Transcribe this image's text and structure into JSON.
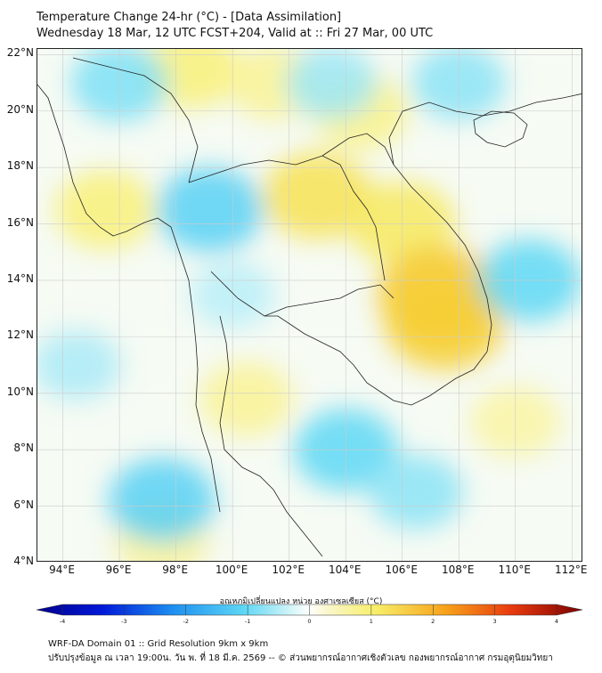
{
  "header": {
    "title_line1": "Temperature Change 24-hr (°C) - [Data Assimilation]",
    "title_line2": "Wednesday 18 Mar, 12 UTC FCST+204, Valid at :: Fri 27 Mar, 00 UTC"
  },
  "map": {
    "lat_labels": [
      "22°N",
      "20°N",
      "18°N",
      "16°N",
      "14°N",
      "12°N",
      "10°N",
      "8°N",
      "6°N",
      "4°N"
    ],
    "lon_labels": [
      "94°E",
      "96°E",
      "98°E",
      "100°E",
      "102°E",
      "104°E",
      "106°E",
      "108°E",
      "110°E",
      "112°E"
    ],
    "lat_values": [
      22,
      20,
      18,
      16,
      14,
      12,
      10,
      8,
      6,
      4
    ],
    "lon_values": [
      94,
      96,
      98,
      100,
      102,
      104,
      106,
      108,
      110,
      112
    ],
    "field_hotspots": [
      {
        "lon": 98.5,
        "lat": 21.5,
        "value": 0.9
      },
      {
        "lon": 101.5,
        "lat": 21.0,
        "value": 0.7
      },
      {
        "lon": 103.0,
        "lat": 17.0,
        "value": 1.2
      },
      {
        "lon": 106.0,
        "lat": 16.0,
        "value": 1.1
      },
      {
        "lon": 107.3,
        "lat": 13.5,
        "value": 1.6
      },
      {
        "lon": 107.5,
        "lat": 12.5,
        "value": 1.5
      },
      {
        "lon": 95.5,
        "lat": 16.5,
        "value": 0.9
      },
      {
        "lon": 97.5,
        "lat": 4.8,
        "value": 0.7
      },
      {
        "lon": 100.5,
        "lat": 9.8,
        "value": 0.7
      },
      {
        "lon": 110.0,
        "lat": 9.0,
        "value": 0.6
      },
      {
        "lon": 104.5,
        "lat": 20.0,
        "value": 0.8
      },
      {
        "lon": 96.0,
        "lat": 21.0,
        "value": -0.8
      },
      {
        "lon": 99.2,
        "lat": 16.5,
        "value": -1.1
      },
      {
        "lon": 103.5,
        "lat": 21.0,
        "value": -0.6
      },
      {
        "lon": 104.0,
        "lat": 8.0,
        "value": -1.0
      },
      {
        "lon": 97.5,
        "lat": 6.2,
        "value": -1.1
      },
      {
        "lon": 110.5,
        "lat": 14.0,
        "value": -1.0
      },
      {
        "lon": 108.0,
        "lat": 21.0,
        "value": -0.7
      },
      {
        "lon": 106.5,
        "lat": 6.5,
        "value": -0.7
      },
      {
        "lon": 100.0,
        "lat": 13.5,
        "value": -0.4
      },
      {
        "lon": 94.5,
        "lat": 11.0,
        "value": -0.5
      }
    ]
  },
  "colorbar": {
    "label": "อุณหภูมิเปลี่ยนแปลง หน่วย องศาเซลเซียส (°C)",
    "ticks": [
      "-4",
      "-3",
      "-2",
      "-1",
      "0",
      "1",
      "2",
      "3",
      "4"
    ],
    "min": -4,
    "max": 4
  },
  "footer": {
    "line1": "WRF-DA Domain 01 :: Grid Resolution 9km x 9km",
    "line2": "ปรับปรุงข้อมูล ณ เวลา 19:00น. วัน พ. ที่ 18 มี.ค. 2569 -- © ส่วนพยากรณ์อากาศเชิงตัวเลข กองพยากรณ์อากาศ กรมอุตุนิยมวิทยา"
  },
  "colors": {
    "background": "#ffffff",
    "grid": "#cccccc",
    "border": "#111111",
    "coast": "#222222"
  }
}
